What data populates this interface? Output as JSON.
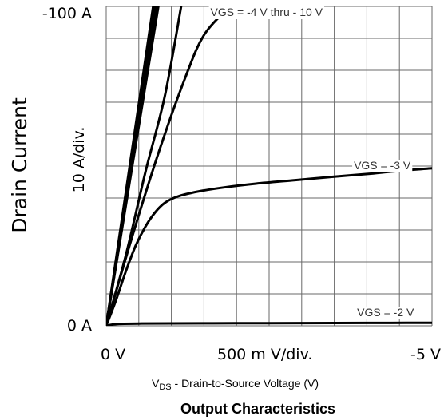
{
  "chart_data": {
    "type": "line",
    "title": "Output Characteristics",
    "ylabel": "Drain Current",
    "ylabel_scale": "10  A/div.",
    "xlabel_prefix": "V",
    "xlabel_sub": "DS",
    "xlabel_rest": " - Drain-to-Source Voltage (V)",
    "x_ticks": {
      "left": "0  V",
      "middle": "500 m V/div.",
      "right": "-5  V"
    },
    "y_ticks": {
      "top": "-100  A",
      "bottom": "0  A"
    },
    "xlim": [
      0,
      5
    ],
    "ylim": [
      0,
      100
    ],
    "grid": true,
    "series": [
      {
        "name": "VGS = -4 V thru - 10 V",
        "label_x": 1.6,
        "label_y": 97,
        "points": [
          [
            0,
            0
          ],
          [
            0.8,
            100
          ]
        ]
      },
      {
        "name": "",
        "points": [
          [
            0,
            0
          ],
          [
            0.78,
            100
          ]
        ]
      },
      {
        "name": "",
        "points": [
          [
            0,
            0
          ],
          [
            0.76,
            100
          ]
        ]
      },
      {
        "name": "",
        "points": [
          [
            0,
            0
          ],
          [
            0.74,
            100
          ]
        ]
      },
      {
        "name": "",
        "points": [
          [
            0,
            0
          ],
          [
            0.72,
            100
          ]
        ]
      },
      {
        "name": "",
        "points": [
          [
            0,
            0
          ],
          [
            0.75,
            96
          ]
        ]
      },
      {
        "name": "",
        "points": [
          [
            0,
            0
          ],
          [
            0.3,
            22
          ],
          [
            0.6,
            48
          ],
          [
            0.9,
            72
          ],
          [
            1.15,
            100
          ]
        ]
      },
      {
        "name": "",
        "points": [
          [
            0,
            0
          ],
          [
            0.4,
            28
          ],
          [
            0.8,
            54
          ],
          [
            1.2,
            77
          ],
          [
            1.5,
            91
          ],
          [
            1.9,
            100
          ]
        ]
      },
      {
        "name": "VGS = -3 V",
        "label_x": 3.8,
        "label_y": 49,
        "points": [
          [
            0,
            0
          ],
          [
            0.15,
            8
          ],
          [
            0.3,
            17
          ],
          [
            0.45,
            25
          ],
          [
            0.6,
            31
          ],
          [
            0.75,
            35.5
          ],
          [
            0.9,
            38.5
          ],
          [
            1.1,
            40.5
          ],
          [
            1.4,
            42
          ],
          [
            1.8,
            43.3
          ],
          [
            2.3,
            44.5
          ],
          [
            2.9,
            45.6
          ],
          [
            3.5,
            46.7
          ],
          [
            4.1,
            47.7
          ],
          [
            4.6,
            48.7
          ],
          [
            5,
            49.3
          ]
        ]
      },
      {
        "name": "VGS = -2 V",
        "label_x": 3.85,
        "label_y": 3,
        "points": [
          [
            0,
            0
          ],
          [
            0.1,
            0.4
          ],
          [
            0.2,
            0.6
          ],
          [
            0.5,
            0.7
          ],
          [
            1,
            0.75
          ],
          [
            2,
            0.8
          ],
          [
            3,
            0.85
          ],
          [
            4,
            0.9
          ],
          [
            5,
            0.95
          ]
        ]
      }
    ]
  }
}
